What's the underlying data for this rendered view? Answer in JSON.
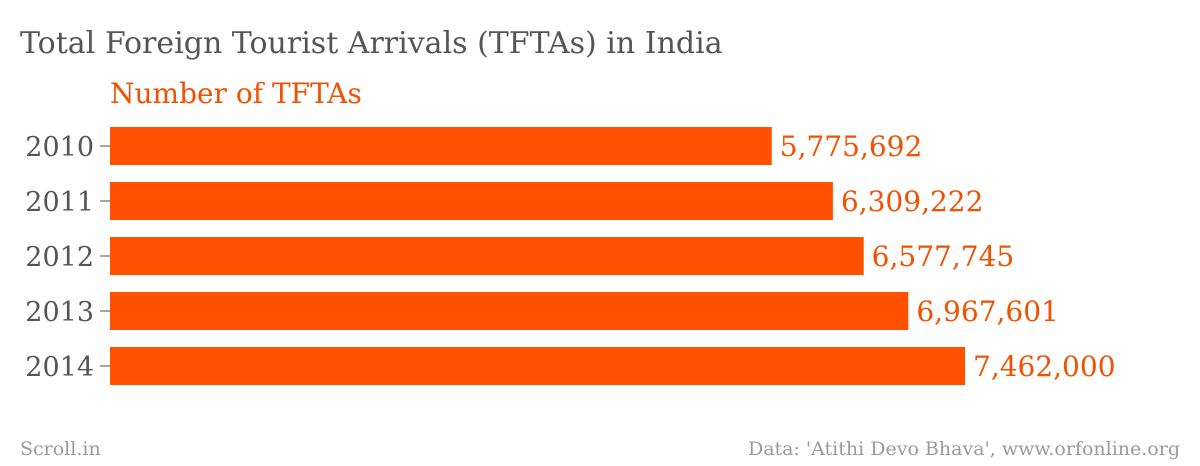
{
  "chart_data": {
    "type": "bar",
    "orientation": "horizontal",
    "title": "Total Foreign Tourist Arrivals (TFTAs) in India",
    "series": [
      {
        "name": "Number of TFTAs",
        "values": [
          5775692,
          6309222,
          6577745,
          6967601,
          7462000
        ],
        "value_labels": [
          "5,775,692",
          "6,309,222",
          "6,577,745",
          "6,967,601",
          "7,462,000"
        ],
        "color": "#ff5100"
      }
    ],
    "categories": [
      "2010",
      "2011",
      "2012",
      "2013",
      "2014"
    ],
    "xlim": [
      0,
      7462000
    ],
    "grid": false,
    "legend": "top-left"
  },
  "footer": {
    "source_left": "Scroll.in",
    "source_right": "Data: 'Atithi Devo Bhava', www.orfonline.org"
  },
  "colors": {
    "bar": "#ff5100",
    "accent_text": "#f25100",
    "title_text": "#555555",
    "footer_text": "#9a9a9a"
  }
}
